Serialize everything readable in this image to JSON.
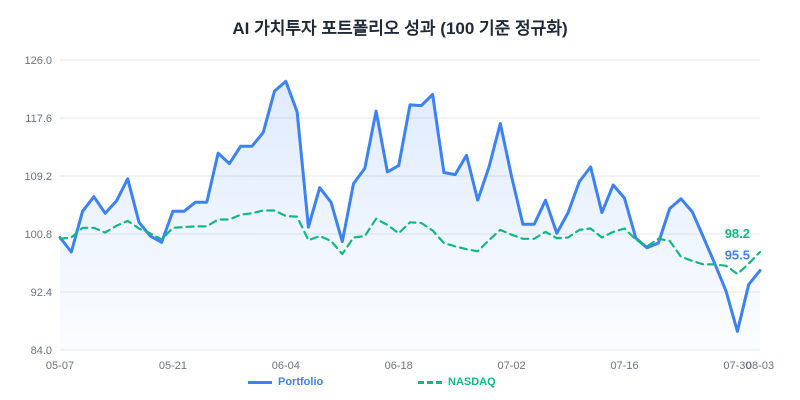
{
  "chart_data": {
    "type": "line",
    "title": "AI 가치투자 포트폴리오 성과 (100 기준 정규화)",
    "xlabel": "",
    "ylabel": "",
    "ylim": [
      84.0,
      126.0
    ],
    "yticks": [
      "126.0",
      "117.6",
      "109.2",
      "100.8",
      "92.4",
      "84.0"
    ],
    "xtick_labels": [
      "05-07",
      "05-21",
      "06-04",
      "06-18",
      "07-02",
      "07-16",
      "07-30",
      "08-03"
    ],
    "xtick_index": [
      0,
      10,
      20,
      30,
      40,
      50,
      60,
      62
    ],
    "grid": true,
    "legend_position": "bottom",
    "series": [
      {
        "name": "Portfolio",
        "color": "#3b82f6",
        "style": "solid",
        "fill": true,
        "end_label": "95.5",
        "values": [
          100.3,
          98.2,
          104.1,
          106.2,
          103.8,
          105.6,
          108.8,
          102.5,
          100.5,
          99.6,
          104.1,
          104.1,
          105.4,
          105.4,
          112.5,
          111.0,
          113.5,
          113.5,
          115.5,
          121.5,
          122.9,
          118.5,
          101.8,
          107.5,
          105.4,
          99.7,
          108.1,
          110.3,
          118.6,
          109.8,
          110.7,
          119.5,
          119.4,
          121.0,
          109.7,
          109.4,
          112.2,
          105.7,
          110.5,
          116.8,
          109.1,
          102.2,
          102.2,
          105.7,
          100.9,
          103.9,
          108.4,
          110.5,
          103.9,
          107.9,
          106.0,
          100.2,
          98.8,
          99.5,
          104.5,
          105.9,
          104.0,
          100.3,
          96.5,
          92.5,
          86.7,
          93.5,
          95.5
        ]
      },
      {
        "name": "NASDAQ",
        "color": "#10b981",
        "style": "dashed",
        "fill": false,
        "end_label": "98.2",
        "values": [
          100.1,
          100.3,
          101.7,
          101.7,
          101.0,
          102.0,
          102.7,
          101.6,
          100.9,
          100.0,
          101.7,
          101.8,
          101.9,
          101.9,
          102.9,
          102.9,
          103.6,
          103.8,
          104.2,
          104.2,
          103.4,
          103.3,
          99.9,
          100.5,
          99.8,
          97.9,
          100.3,
          100.5,
          103.0,
          102.1,
          100.9,
          102.5,
          102.4,
          101.3,
          99.5,
          99.0,
          98.6,
          98.3,
          99.9,
          101.4,
          100.7,
          100.1,
          100.1,
          101.1,
          100.2,
          100.3,
          101.4,
          101.6,
          100.3,
          101.1,
          101.6,
          100.0,
          99.0,
          100.1,
          99.8,
          97.5,
          96.9,
          96.4,
          96.4,
          96.2,
          95.0,
          96.5,
          98.2
        ]
      }
    ]
  }
}
